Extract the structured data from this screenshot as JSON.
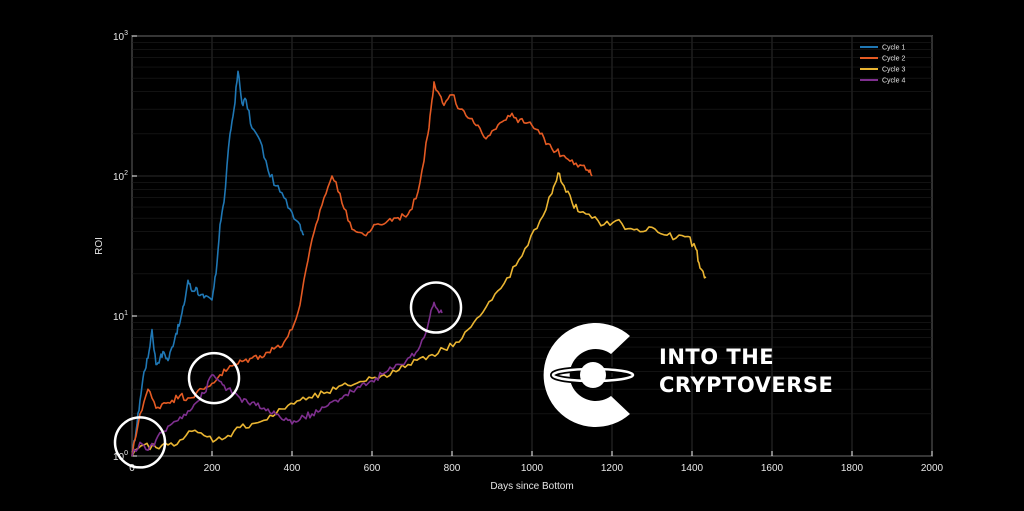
{
  "chart_data": {
    "type": "line",
    "title": "",
    "xlabel": "Days since Bottom",
    "ylabel": "ROI",
    "x_scale": "linear",
    "y_scale": "log",
    "xlim": [
      0,
      2000
    ],
    "ylim": [
      1,
      1000
    ],
    "x_ticks": [
      "0",
      "200",
      "400",
      "600",
      "800",
      "1000",
      "1200",
      "1400",
      "1600",
      "1800",
      "2000"
    ],
    "y_ticks": [
      {
        "base": "10",
        "exp": "0"
      },
      {
        "base": "10",
        "exp": "1"
      },
      {
        "base": "10",
        "exp": "2"
      },
      {
        "base": "10",
        "exp": "3"
      }
    ],
    "grid": true,
    "legend_position": "top-right",
    "series": [
      {
        "name": "Cycle 1",
        "color": "#1f77b4",
        "points": [
          [
            0,
            1.0
          ],
          [
            10,
            1.5
          ],
          [
            20,
            2.5
          ],
          [
            30,
            4.0
          ],
          [
            40,
            5.0
          ],
          [
            50,
            8.0
          ],
          [
            60,
            4.5
          ],
          [
            70,
            5.0
          ],
          [
            80,
            5.5
          ],
          [
            90,
            4.8
          ],
          [
            100,
            6.0
          ],
          [
            110,
            7.5
          ],
          [
            120,
            9.0
          ],
          [
            130,
            12.0
          ],
          [
            140,
            18.0
          ],
          [
            150,
            15.0
          ],
          [
            160,
            16.0
          ],
          [
            170,
            14.0
          ],
          [
            180,
            13.5
          ],
          [
            200,
            13.0
          ],
          [
            210,
            20.0
          ],
          [
            220,
            45.0
          ],
          [
            230,
            65.0
          ],
          [
            245,
            200.0
          ],
          [
            255,
            300.0
          ],
          [
            265,
            560.0
          ],
          [
            275,
            330.0
          ],
          [
            285,
            350.0
          ],
          [
            300,
            220.0
          ],
          [
            320,
            180.0
          ],
          [
            340,
            110.0
          ],
          [
            360,
            85.0
          ],
          [
            380,
            70.0
          ],
          [
            400,
            55.0
          ],
          [
            420,
            45.0
          ],
          [
            430,
            38.0
          ]
        ]
      },
      {
        "name": "Cycle 2",
        "color": "#e45a23",
        "points": [
          [
            0,
            1.0
          ],
          [
            20,
            2.0
          ],
          [
            40,
            3.0
          ],
          [
            60,
            2.2
          ],
          [
            80,
            2.4
          ],
          [
            100,
            2.5
          ],
          [
            120,
            2.7
          ],
          [
            140,
            2.6
          ],
          [
            160,
            2.8
          ],
          [
            180,
            3.0
          ],
          [
            200,
            3.3
          ],
          [
            220,
            3.8
          ],
          [
            240,
            4.2
          ],
          [
            260,
            4.5
          ],
          [
            280,
            4.8
          ],
          [
            300,
            5.0
          ],
          [
            320,
            5.2
          ],
          [
            340,
            5.5
          ],
          [
            360,
            6.0
          ],
          [
            380,
            6.5
          ],
          [
            400,
            8.0
          ],
          [
            420,
            12.0
          ],
          [
            440,
            25.0
          ],
          [
            460,
            45.0
          ],
          [
            480,
            70.0
          ],
          [
            500,
            100.0
          ],
          [
            520,
            75.0
          ],
          [
            540,
            48.0
          ],
          [
            560,
            40.0
          ],
          [
            580,
            38.0
          ],
          [
            600,
            42.0
          ],
          [
            620,
            45.0
          ],
          [
            640,
            48.0
          ],
          [
            660,
            50.0
          ],
          [
            680,
            52.0
          ],
          [
            700,
            58.0
          ],
          [
            720,
            90.0
          ],
          [
            740,
            200.0
          ],
          [
            750,
            350.0
          ],
          [
            755,
            470.0
          ],
          [
            765,
            400.0
          ],
          [
            780,
            320.0
          ],
          [
            800,
            380.0
          ],
          [
            820,
            300.0
          ],
          [
            840,
            260.0
          ],
          [
            860,
            230.0
          ],
          [
            880,
            190.0
          ],
          [
            900,
            210.0
          ],
          [
            920,
            240.0
          ],
          [
            940,
            270.0
          ],
          [
            960,
            260.0
          ],
          [
            980,
            240.0
          ],
          [
            1000,
            230.0
          ],
          [
            1020,
            200.0
          ],
          [
            1040,
            170.0
          ],
          [
            1060,
            150.0
          ],
          [
            1080,
            140.0
          ],
          [
            1100,
            130.0
          ],
          [
            1120,
            120.0
          ],
          [
            1140,
            110.0
          ],
          [
            1150,
            100.0
          ]
        ]
      },
      {
        "name": "Cycle 3",
        "color": "#eab532",
        "points": [
          [
            0,
            1.0
          ],
          [
            30,
            1.2
          ],
          [
            60,
            1.15
          ],
          [
            90,
            1.2
          ],
          [
            120,
            1.3
          ],
          [
            150,
            1.5
          ],
          [
            180,
            1.4
          ],
          [
            210,
            1.3
          ],
          [
            240,
            1.4
          ],
          [
            270,
            1.6
          ],
          [
            300,
            1.7
          ],
          [
            330,
            1.8
          ],
          [
            360,
            2.0
          ],
          [
            390,
            2.3
          ],
          [
            420,
            2.5
          ],
          [
            450,
            2.6
          ],
          [
            480,
            2.8
          ],
          [
            510,
            3.0
          ],
          [
            540,
            3.2
          ],
          [
            570,
            3.4
          ],
          [
            600,
            3.6
          ],
          [
            630,
            3.8
          ],
          [
            660,
            4.0
          ],
          [
            690,
            4.5
          ],
          [
            720,
            5.0
          ],
          [
            750,
            5.3
          ],
          [
            780,
            5.8
          ],
          [
            810,
            6.5
          ],
          [
            840,
            8.0
          ],
          [
            870,
            10.0
          ],
          [
            900,
            13.0
          ],
          [
            930,
            17.0
          ],
          [
            960,
            23.0
          ],
          [
            990,
            32.0
          ],
          [
            1020,
            48.0
          ],
          [
            1050,
            75.0
          ],
          [
            1065,
            105.0
          ],
          [
            1080,
            85.0
          ],
          [
            1100,
            65.0
          ],
          [
            1120,
            55.0
          ],
          [
            1150,
            50.0
          ],
          [
            1180,
            45.0
          ],
          [
            1210,
            48.0
          ],
          [
            1240,
            42.0
          ],
          [
            1270,
            40.0
          ],
          [
            1300,
            43.0
          ],
          [
            1330,
            38.0
          ],
          [
            1360,
            36.0
          ],
          [
            1390,
            37.0
          ],
          [
            1410,
            30.0
          ],
          [
            1420,
            22.0
          ],
          [
            1435,
            19.0
          ]
        ]
      },
      {
        "name": "Cycle 4",
        "color": "#7e2f8e",
        "points": [
          [
            0,
            1.0
          ],
          [
            20,
            1.25
          ],
          [
            40,
            1.1
          ],
          [
            60,
            1.3
          ],
          [
            80,
            1.5
          ],
          [
            100,
            1.7
          ],
          [
            120,
            1.9
          ],
          [
            140,
            2.1
          ],
          [
            160,
            2.4
          ],
          [
            180,
            2.8
          ],
          [
            200,
            3.8
          ],
          [
            215,
            3.5
          ],
          [
            230,
            3.2
          ],
          [
            250,
            2.8
          ],
          [
            270,
            2.6
          ],
          [
            290,
            2.4
          ],
          [
            310,
            2.3
          ],
          [
            330,
            2.2
          ],
          [
            350,
            2.0
          ],
          [
            370,
            1.9
          ],
          [
            390,
            1.8
          ],
          [
            410,
            1.75
          ],
          [
            430,
            1.9
          ],
          [
            450,
            2.0
          ],
          [
            470,
            2.1
          ],
          [
            490,
            2.3
          ],
          [
            510,
            2.5
          ],
          [
            530,
            2.7
          ],
          [
            550,
            2.9
          ],
          [
            570,
            3.1
          ],
          [
            590,
            3.3
          ],
          [
            610,
            3.6
          ],
          [
            630,
            3.9
          ],
          [
            650,
            4.2
          ],
          [
            670,
            4.5
          ],
          [
            690,
            5.0
          ],
          [
            710,
            5.5
          ],
          [
            730,
            7.0
          ],
          [
            745,
            10.0
          ],
          [
            755,
            12.5
          ],
          [
            765,
            11.0
          ],
          [
            775,
            10.5
          ]
        ]
      }
    ],
    "annotations": [
      {
        "shape": "circle",
        "x": 20,
        "y": 1.25
      },
      {
        "shape": "circle",
        "x": 205,
        "y": 3.6
      },
      {
        "shape": "circle",
        "x": 760,
        "y": 11.5
      }
    ]
  },
  "brand": {
    "line1": "INTO THE",
    "line2": "CRYPTOVERSE"
  }
}
